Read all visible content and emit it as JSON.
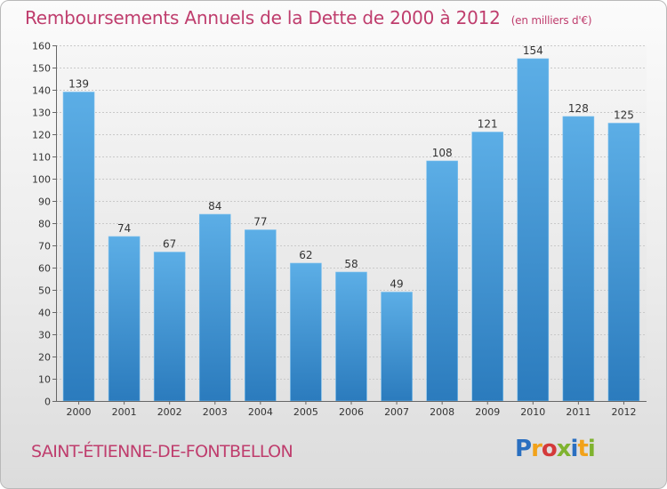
{
  "header": {
    "title": "Remboursements Annuels de la Dette de 2000 à 2012",
    "subtitle": "(en milliers d'€)"
  },
  "commune": "SAINT-ÉTIENNE-DE-FONTBELLON",
  "logo": {
    "text": "Proxiti"
  },
  "colors": {
    "title": "#bf3d6d",
    "bar_top": "#5caee6",
    "bar_bottom": "#2b7bbd"
  },
  "chart_data": {
    "type": "bar",
    "title": "Remboursements Annuels de la Dette de 2000 à 2012",
    "subtitle": "(en milliers d'€)",
    "xlabel": "",
    "ylabel": "",
    "categories": [
      "2000",
      "2001",
      "2002",
      "2003",
      "2004",
      "2005",
      "2006",
      "2007",
      "2008",
      "2009",
      "2010",
      "2011",
      "2012"
    ],
    "values": [
      139,
      74,
      67,
      84,
      77,
      62,
      58,
      49,
      108,
      121,
      154,
      128,
      125
    ],
    "ylim": [
      0,
      160
    ],
    "yticks": [
      0,
      10,
      20,
      30,
      40,
      50,
      60,
      70,
      80,
      90,
      100,
      110,
      120,
      130,
      140,
      150,
      160
    ],
    "grid": true,
    "legend": "none"
  }
}
